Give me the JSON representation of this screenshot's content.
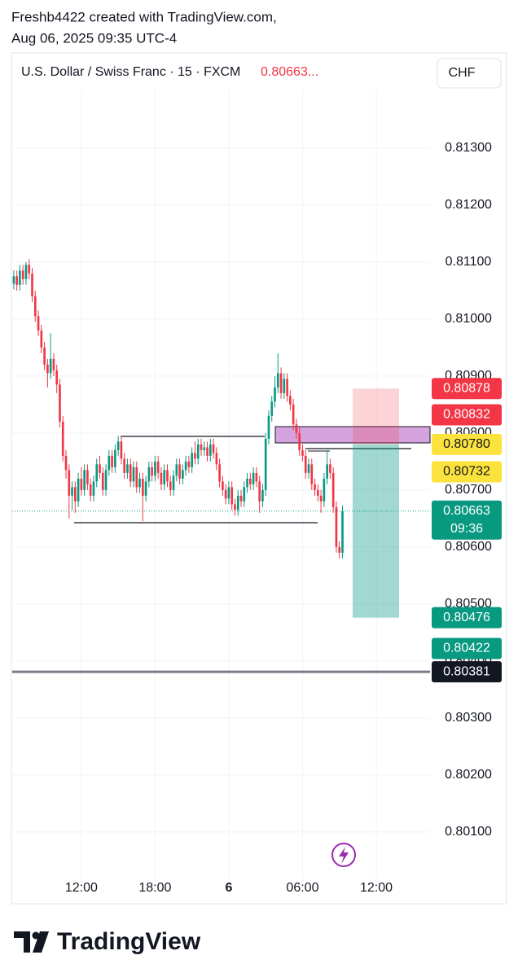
{
  "header": {
    "line1": "Freshb4422 created with TradingView.com,",
    "line2": "Aug 06, 2025 09:35 UTC-4"
  },
  "chart_data": {
    "type": "candlestick",
    "title": "U.S. Dollar / Swiss Franc · 15 · FXCM",
    "header_price": "0.80663...",
    "currency": "CHF",
    "up_color": "#089981",
    "down_color": "#f23645",
    "grid": true,
    "xlim": [
      -0.5,
      135.5
    ],
    "ylim": [
      0.80017,
      0.81464
    ],
    "xticks": [
      {
        "value": 22,
        "label": "12:00"
      },
      {
        "value": 46,
        "label": "18:00"
      },
      {
        "value": 70,
        "label": "6"
      },
      {
        "value": 94,
        "label": "06:00"
      },
      {
        "value": 118,
        "label": "12:00"
      }
    ],
    "yticks": [
      {
        "value": 0.813,
        "label": "0.81300"
      },
      {
        "value": 0.812,
        "label": "0.81200"
      },
      {
        "value": 0.811,
        "label": "0.81100"
      },
      {
        "value": 0.81,
        "label": "0.81000"
      },
      {
        "value": 0.809,
        "label": "0.80900"
      },
      {
        "value": 0.808,
        "label": "0.80800"
      },
      {
        "value": 0.807,
        "label": "0.80700"
      },
      {
        "value": 0.806,
        "label": "0.80600"
      },
      {
        "value": 0.805,
        "label": "0.80500"
      },
      {
        "value": 0.804,
        "label": "0.80400"
      },
      {
        "value": 0.803,
        "label": "0.80300"
      },
      {
        "value": 0.802,
        "label": "0.80200"
      },
      {
        "value": 0.801,
        "label": "0.80100"
      }
    ],
    "open": [
      0.81062,
      0.81075,
      0.8106,
      0.81085,
      0.8107,
      0.81095,
      0.8108,
      0.8104,
      0.81005,
      0.8098,
      0.8095,
      0.8092,
      0.80905,
      0.8093,
      0.8091,
      0.80885,
      0.8082,
      0.8076,
      0.80735,
      0.8069,
      0.80705,
      0.8068,
      0.8072,
      0.807,
      0.80735,
      0.8071,
      0.8069,
      0.80715,
      0.80745,
      0.8073,
      0.807,
      0.80735,
      0.8076,
      0.8074,
      0.8077,
      0.80785,
      0.80755,
      0.8073,
      0.80745,
      0.80715,
      0.8074,
      0.80705,
      0.8072,
      0.8069,
      0.80715,
      0.8074,
      0.80725,
      0.8075,
      0.8073,
      0.8071,
      0.80735,
      0.80715,
      0.807,
      0.80725,
      0.80745,
      0.8072,
      0.80735,
      0.8075,
      0.8074,
      0.80765,
      0.80755,
      0.8078,
      0.8077,
      0.80775,
      0.8076,
      0.8078,
      0.80765,
      0.80745,
      0.80715,
      0.807,
      0.80685,
      0.80705,
      0.80675,
      0.80665,
      0.8069,
      0.8068,
      0.80705,
      0.8072,
      0.8071,
      0.8073,
      0.80715,
      0.8068,
      0.807,
      0.8079,
      0.8083,
      0.80855,
      0.8088,
      0.80905,
      0.8087,
      0.80895,
      0.80865,
      0.8085,
      0.80815,
      0.808,
      0.8077,
      0.8076,
      0.8073,
      0.80745,
      0.8071,
      0.807,
      0.8069,
      0.8068,
      0.8072,
      0.80745,
      0.8073,
      0.8067,
      0.806,
      0.8059
    ],
    "high": [
      0.81085,
      0.81085,
      0.81095,
      0.81095,
      0.811,
      0.81105,
      0.8109,
      0.8105,
      0.81015,
      0.8099,
      0.8096,
      0.8093,
      0.80975,
      0.8094,
      0.8092,
      0.80895,
      0.8083,
      0.8077,
      0.80745,
      0.80715,
      0.80715,
      0.8073,
      0.8074,
      0.80745,
      0.80745,
      0.8072,
      0.80725,
      0.80755,
      0.8076,
      0.8074,
      0.80745,
      0.8077,
      0.8077,
      0.8078,
      0.80795,
      0.80795,
      0.80765,
      0.80755,
      0.80755,
      0.8075,
      0.8075,
      0.8073,
      0.8073,
      0.80725,
      0.8075,
      0.8075,
      0.8076,
      0.8076,
      0.8074,
      0.80745,
      0.80745,
      0.80725,
      0.80735,
      0.80755,
      0.80755,
      0.80745,
      0.8076,
      0.8076,
      0.80775,
      0.80785,
      0.8079,
      0.8079,
      0.80785,
      0.80785,
      0.8079,
      0.8079,
      0.80775,
      0.80755,
      0.80725,
      0.8071,
      0.80715,
      0.80715,
      0.80685,
      0.807,
      0.807,
      0.80715,
      0.8073,
      0.8073,
      0.8074,
      0.8074,
      0.80725,
      0.8071,
      0.808,
      0.8084,
      0.80865,
      0.809,
      0.8094,
      0.80915,
      0.80905,
      0.80905,
      0.80875,
      0.8086,
      0.80825,
      0.8081,
      0.8078,
      0.8077,
      0.80755,
      0.80755,
      0.8072,
      0.8071,
      0.807,
      0.8073,
      0.8077,
      0.80755,
      0.8074,
      0.8068,
      0.8061,
      0.80673
    ],
    "low": [
      0.81052,
      0.8105,
      0.8105,
      0.8106,
      0.8106,
      0.8107,
      0.8103,
      0.80995,
      0.8097,
      0.8094,
      0.8091,
      0.8088,
      0.80895,
      0.809,
      0.8087,
      0.8081,
      0.8075,
      0.8072,
      0.8065,
      0.80665,
      0.8066,
      0.8067,
      0.8069,
      0.8069,
      0.807,
      0.8068,
      0.8068,
      0.80705,
      0.8072,
      0.8069,
      0.8069,
      0.80725,
      0.8073,
      0.8073,
      0.8076,
      0.80745,
      0.8072,
      0.8072,
      0.80705,
      0.80705,
      0.80695,
      0.80695,
      0.80645,
      0.8068,
      0.80705,
      0.80715,
      0.80715,
      0.8072,
      0.807,
      0.807,
      0.80705,
      0.8069,
      0.8069,
      0.80715,
      0.8071,
      0.8071,
      0.80725,
      0.8073,
      0.8073,
      0.80745,
      0.80745,
      0.8076,
      0.8076,
      0.8075,
      0.8075,
      0.80755,
      0.80735,
      0.80705,
      0.8069,
      0.80675,
      0.80675,
      0.80665,
      0.80655,
      0.80655,
      0.8067,
      0.8067,
      0.80695,
      0.807,
      0.807,
      0.80705,
      0.8066,
      0.8067,
      0.8069,
      0.8078,
      0.8082,
      0.80845,
      0.8087,
      0.8086,
      0.8086,
      0.80855,
      0.8084,
      0.80805,
      0.8079,
      0.8076,
      0.8075,
      0.8072,
      0.8072,
      0.807,
      0.8069,
      0.8068,
      0.8066,
      0.8067,
      0.8071,
      0.8072,
      0.8066,
      0.8059,
      0.8058,
      0.8058
    ],
    "close": [
      0.81075,
      0.8106,
      0.81085,
      0.8107,
      0.81095,
      0.8108,
      0.8104,
      0.81005,
      0.8098,
      0.8095,
      0.8092,
      0.80905,
      0.8093,
      0.8091,
      0.80885,
      0.8082,
      0.8076,
      0.80735,
      0.8069,
      0.80705,
      0.8068,
      0.8072,
      0.807,
      0.80735,
      0.8071,
      0.8069,
      0.80715,
      0.80745,
      0.8073,
      0.807,
      0.80735,
      0.8076,
      0.8074,
      0.8077,
      0.80785,
      0.80755,
      0.8073,
      0.80745,
      0.80715,
      0.8074,
      0.80705,
      0.8072,
      0.8069,
      0.80715,
      0.8074,
      0.80725,
      0.8075,
      0.8073,
      0.8071,
      0.80735,
      0.80715,
      0.807,
      0.80725,
      0.80745,
      0.8072,
      0.80735,
      0.8075,
      0.8074,
      0.80765,
      0.80755,
      0.8078,
      0.8077,
      0.80775,
      0.8076,
      0.8078,
      0.80765,
      0.80745,
      0.80715,
      0.807,
      0.80685,
      0.80705,
      0.80675,
      0.80665,
      0.8069,
      0.8068,
      0.80705,
      0.8072,
      0.8071,
      0.8073,
      0.80715,
      0.8068,
      0.807,
      0.8079,
      0.8083,
      0.80855,
      0.8088,
      0.80905,
      0.8087,
      0.80895,
      0.80865,
      0.8085,
      0.80815,
      0.808,
      0.8077,
      0.8076,
      0.8073,
      0.80745,
      0.8071,
      0.807,
      0.8069,
      0.8068,
      0.8072,
      0.80745,
      0.8073,
      0.8067,
      0.806,
      0.8059,
      0.80663
    ],
    "price_labels": [
      {
        "value": 0.80878,
        "label": "0.80878",
        "color": "#f23645",
        "text_color": "#ffffff"
      },
      {
        "value": 0.80832,
        "label": "0.80832",
        "color": "#f23645",
        "text_color": "#ffffff"
      },
      {
        "value": 0.8078,
        "label": "0.80780",
        "color": "#fbe23c",
        "text_color": "#131722"
      },
      {
        "value": 0.80732,
        "label": "0.80732",
        "color": "#fbe23c",
        "text_color": "#131722"
      },
      {
        "value": 0.80663,
        "label": "0.80663",
        "countdown": "09:36",
        "color": "#089981",
        "text_color": "#ffffff"
      },
      {
        "value": 0.80476,
        "label": "0.80476",
        "color": "#089981",
        "text_color": "#ffffff"
      },
      {
        "value": 0.80422,
        "label": "0.80422",
        "color": "#089981",
        "text_color": "#ffffff"
      },
      {
        "value": 0.80381,
        "label": "0.80381",
        "color": "#131722",
        "text_color": "#ffffff"
      }
    ]
  },
  "footer": {
    "brand": "TradingView"
  }
}
